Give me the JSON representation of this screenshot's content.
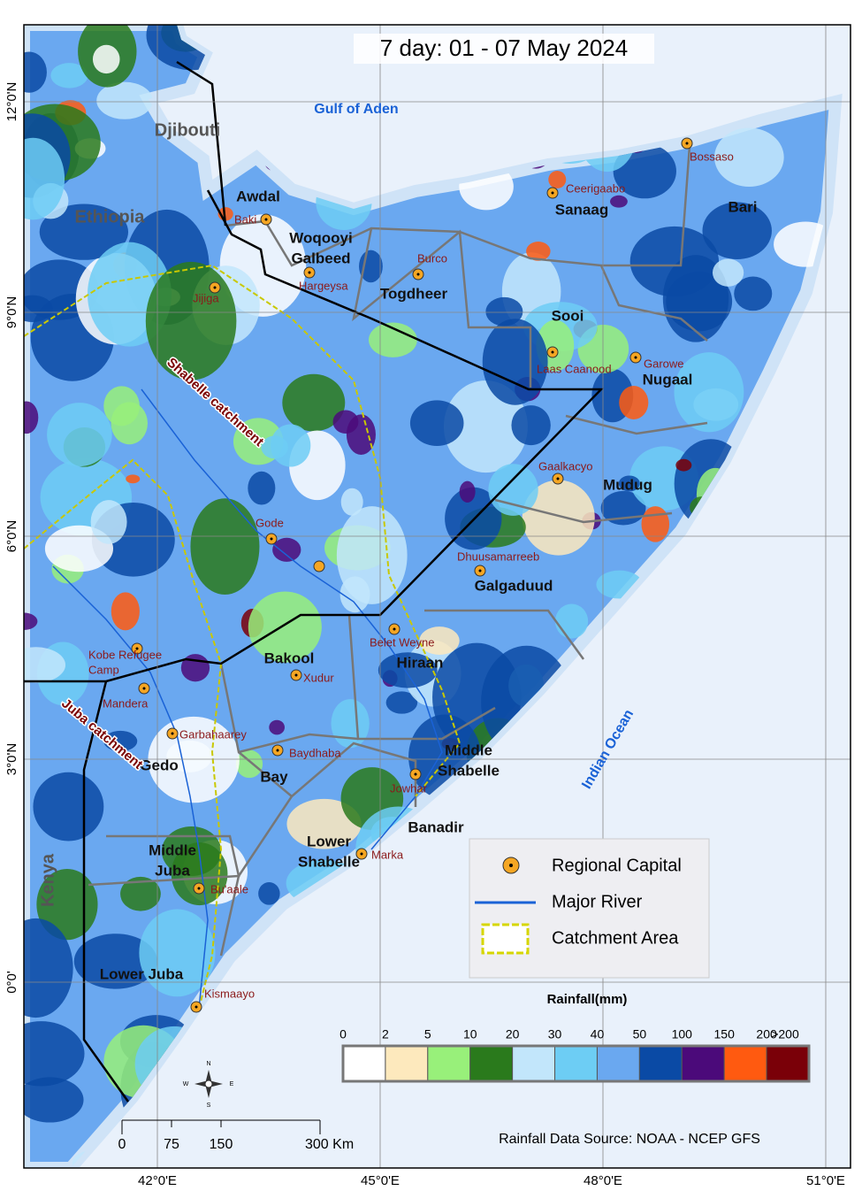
{
  "title": "7 day:  01 - 07 May 2024",
  "water_labels": [
    "Gulf of Aden",
    "Indian Ocean"
  ],
  "country_labels": [
    "Djibouti",
    "Ethiopia",
    "Kenya"
  ],
  "region_labels": [
    "Awdal",
    [
      "Woqooyi",
      "Galbeed"
    ],
    "Togdheer",
    "Sanaag",
    "Bari",
    "Sooi",
    "Nugaal",
    "Mudug",
    "Galgaduud",
    "Hiraan",
    "Bakool",
    "Bay",
    "Gedo",
    [
      "Middle",
      "Shabelle"
    ],
    "Banadir",
    [
      "Lower",
      "Shabelle"
    ],
    [
      "Middle",
      "Juba"
    ],
    "Lower Juba"
  ],
  "capitals": [
    "Baki",
    "Hargeysa",
    "Burco",
    "Ceerigaabo",
    "Bossaso",
    "Jijiga",
    "Laas Caanood",
    "Garowe",
    "Gaalkacyo",
    "Dhuusamarreeb",
    "Gode",
    "Belet Weyne",
    [
      "Kobe Refugee",
      "Camp"
    ],
    "Mandera",
    "Xudur",
    "Garbahaarey",
    "Baydhaba",
    "Jowhar",
    "Marka",
    "Bu'aale",
    "Kismaayo"
  ],
  "catchment_labels": [
    "Shabelle catchment",
    "Juba catchment"
  ],
  "latitude_labels": [
    "12°0'N",
    "9°0'N",
    "6°0'N",
    "3°0'N",
    "0°0'"
  ],
  "longitude_labels": [
    "42°0'E",
    "45°0'E",
    "48°0'E",
    "51°0'E"
  ],
  "legend": {
    "items": [
      "Regional Capital",
      "Major River",
      "Catchment Area"
    ]
  },
  "rainfall_scale": {
    "title": "Rainfall(mm)",
    "labels": [
      "0",
      "2",
      "5",
      "10",
      "20",
      "30",
      "40",
      "50",
      "100",
      "150",
      "200",
      ">200"
    ],
    "colors": [
      "#ffffff",
      "#fde9bd",
      "#98f07a",
      "#2a7a1c",
      "#c2e6fb",
      "#6dcdf4",
      "#6aa8f0",
      "#0a4aa5",
      "#4b0a7a",
      "#ff5a10",
      "#7a0008"
    ]
  },
  "scale_bar": {
    "labels": [
      "0",
      "75",
      "150",
      "300 Km"
    ]
  },
  "compass": [
    "N",
    "E",
    "S",
    "W"
  ],
  "source": "Rainfall Data Source: NOAA - NCEP GFS"
}
